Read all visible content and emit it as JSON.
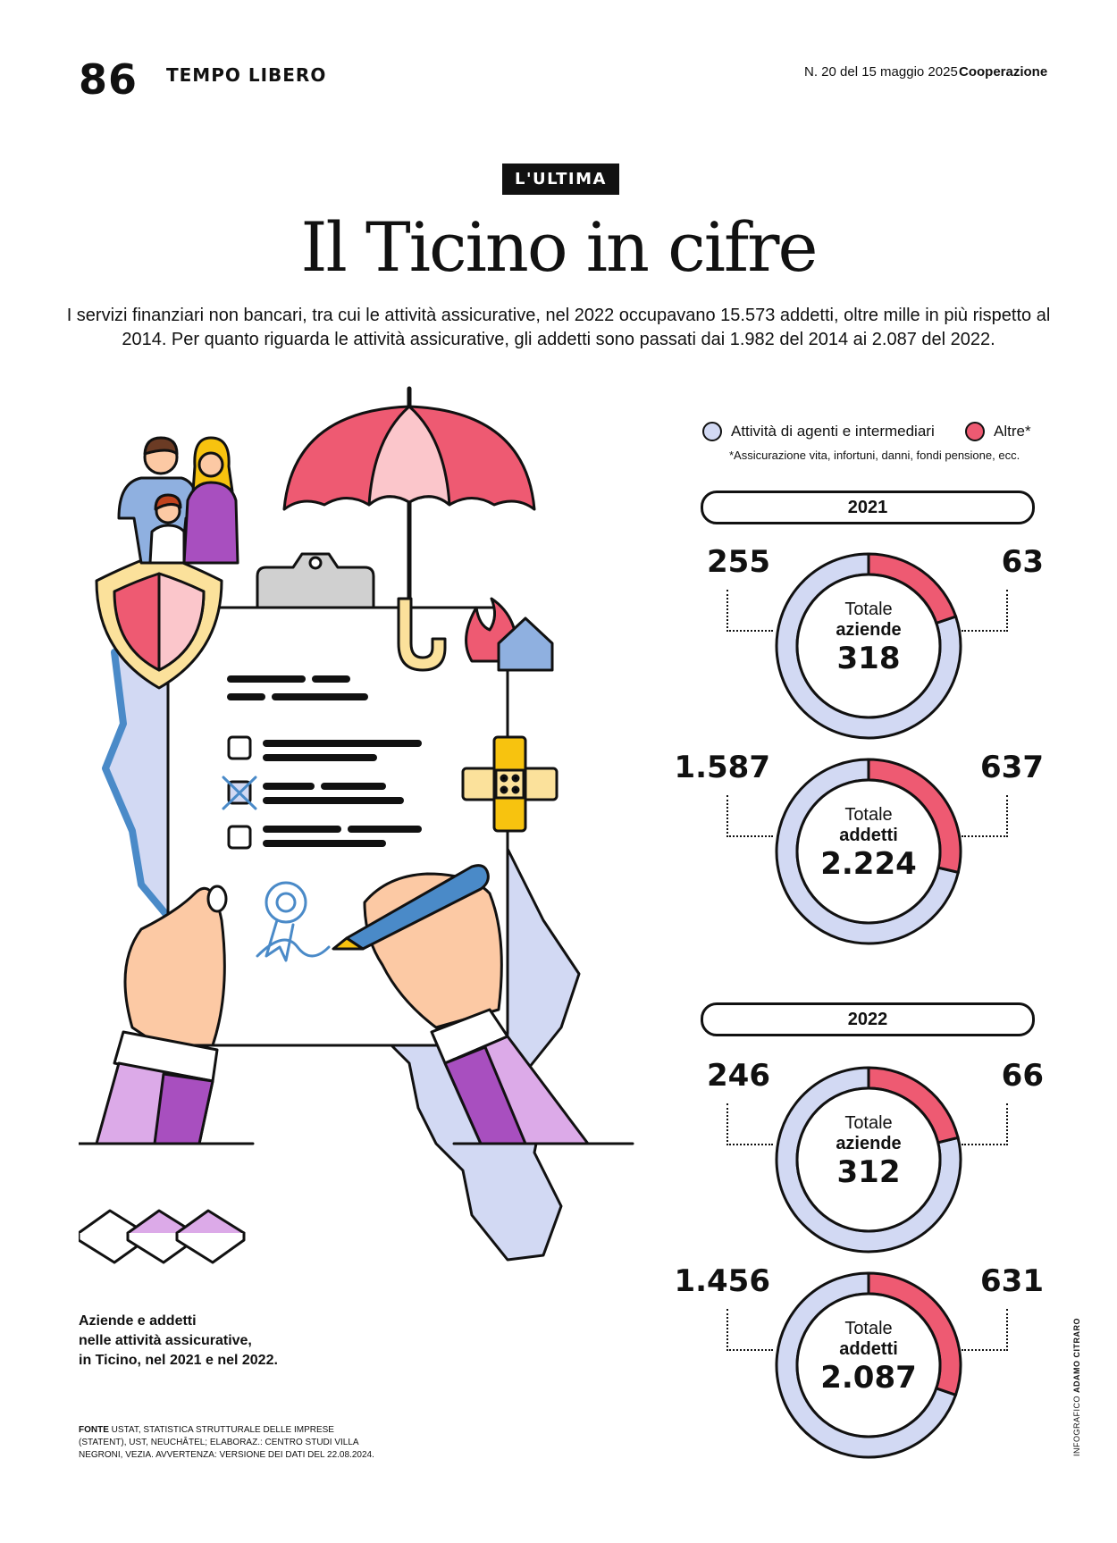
{
  "header": {
    "page_number": "86",
    "section": "TEMPO LIBERO",
    "issue": "N. 20 del 15 maggio 2025",
    "brand": "Cooperazione"
  },
  "kicker": "L'ULTIMA",
  "title": "Il Ticino in cifre",
  "intro": "I servizi finanziari non bancari, tra cui le attività assicurative, nel 2022 occupavano 15.573 addetti, oltre mille in più rispetto al 2014. Per quanto riguarda le attività assicurative, gli addetti sono passati dai 1.982 del 2014 ai 2.087 del 2022.",
  "legend": {
    "agents": "Attività di agenti e intermediari",
    "other": "Altre*",
    "note": "*Assicurazione vita, infortuni, danni, fondi pensione, ecc."
  },
  "colors": {
    "agents": "#d2d9f3",
    "other": "#ee5a72",
    "pink_light": "#fbc6cb",
    "blue": "#4a8ac8",
    "purple": "#a84fbf",
    "lilac": "#dcaae8",
    "yellow": "#fbe19b",
    "gold": "#f7c30f",
    "skin": "#fcc9a4"
  },
  "chart_data": [
    {
      "type": "pie",
      "year": "2021",
      "metric_top": "Totale",
      "metric": "aziende",
      "total": 318,
      "total_label": "318",
      "labels": [
        "Attività di agenti e intermediari",
        "Altre*"
      ],
      "values": [
        255,
        63
      ],
      "value_labels": [
        "255",
        "63"
      ]
    },
    {
      "type": "pie",
      "year": "2021",
      "metric_top": "Totale",
      "metric": "addetti",
      "total": 2224,
      "total_label": "2.224",
      "labels": [
        "Attività di agenti e intermediari",
        "Altre*"
      ],
      "values": [
        1587,
        637
      ],
      "value_labels": [
        "1.587",
        "637"
      ]
    },
    {
      "type": "pie",
      "year": "2022",
      "metric_top": "Totale",
      "metric": "aziende",
      "total": 312,
      "total_label": "312",
      "labels": [
        "Attività di agenti e intermediari",
        "Altre*"
      ],
      "values": [
        246,
        66
      ],
      "value_labels": [
        "246",
        "66"
      ]
    },
    {
      "type": "pie",
      "year": "2022",
      "metric_top": "Totale",
      "metric": "addetti",
      "total": 2087,
      "total_label": "2.087",
      "labels": [
        "Attività di agenti e intermediari",
        "Altre*"
      ],
      "values": [
        1456,
        631
      ],
      "value_labels": [
        "1.456",
        "631"
      ]
    }
  ],
  "caption": {
    "line1": "Aziende e addetti",
    "line2": "nelle attività assicurative,",
    "line3": "in Ticino, nel 2021 e nel 2022."
  },
  "source": {
    "label": "FONTE",
    "text": "USTAT, STATISTICA STRUTTURALE DELLE IMPRESE (STATENT), UST, NEUCHÂTEL; ELABORAZ.: CENTRO STUDI VILLA NEGRONI, VEZIA. AVVERTENZA: VERSIONE DEI DATI DEL 22.08.2024."
  },
  "credit": {
    "label": "INFOGRAFICO",
    "name": "ADAMO CITRARO"
  }
}
